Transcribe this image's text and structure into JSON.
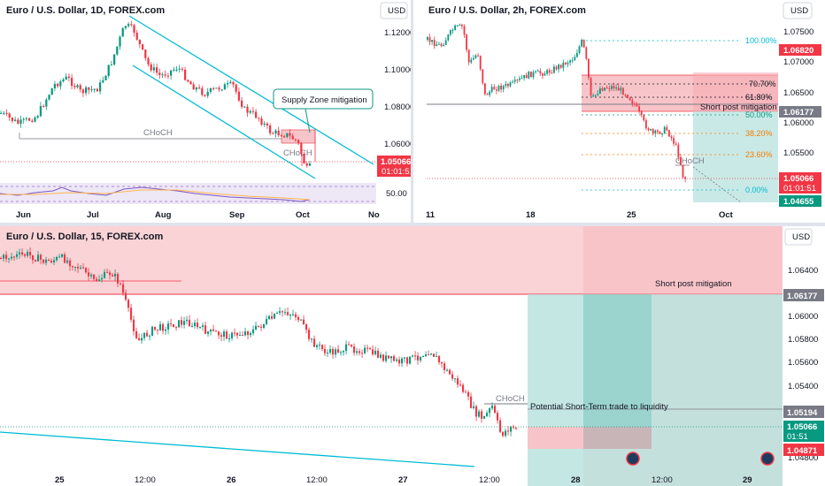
{
  "panel1": {
    "title": "Euro / U.S. Dollar, 1D, FOREX.com",
    "currency": "USD",
    "y_ticks": [
      "1.12000",
      "1.10000",
      "1.08000",
      "1.06000",
      "50.00"
    ],
    "x_ticks": [
      "Jun",
      "Jul",
      "Aug",
      "Sep",
      "Oct",
      "No"
    ],
    "price_tag": "1.05066",
    "countdown": "01:01:51",
    "annotations": {
      "supply": "Supply Zone mitigation",
      "choch1": "CHoCH",
      "choch2": "CHoCH"
    }
  },
  "panel2": {
    "title": "Euro / U.S. Dollar, 2h, FOREX.com",
    "currency": "USD",
    "y_ticks": [
      "1.07500",
      "1.07000",
      "1.06500",
      "1.06000",
      "1.05500",
      "1.05000"
    ],
    "x_ticks": [
      "11",
      "18",
      "25",
      "Oct"
    ],
    "tags": {
      "upper": "1.06820",
      "mid": "1.06177",
      "price": "1.05066",
      "countdown": "01:01:51",
      "lower": "1.04655"
    },
    "fib_levels": [
      "100.00%",
      "70.70%",
      "61.80%",
      "50.00%",
      "38.20%",
      "23.60%",
      "0.00%"
    ],
    "annotations": {
      "short": "Short post mitigation",
      "choch": "CHoCH"
    }
  },
  "panel3": {
    "title": "Euro / U.S. Dollar, 15, FOREX.com",
    "currency": "USD",
    "y_ticks": [
      "1.06400",
      "1.06000",
      "1.05800",
      "1.05600",
      "1.05400",
      "1.04800"
    ],
    "x_ticks": [
      "25",
      "12:00",
      "26",
      "12:00",
      "27",
      "12:00",
      "28",
      "12:00",
      "29"
    ],
    "tags": {
      "mid": "1.06177",
      "choch": "1.05194",
      "price": "1.05066",
      "countdown": "01:51",
      "lower": "1.04871"
    },
    "annotations": {
      "short": "Short post mitigation",
      "choch": "CHoCH",
      "trade": "Potential Short-Term trade to liquidity"
    }
  },
  "colors": {
    "bull": "#089981",
    "bear": "#f23645",
    "trend": "#00bcd4",
    "zone": "#f7c5c9"
  }
}
